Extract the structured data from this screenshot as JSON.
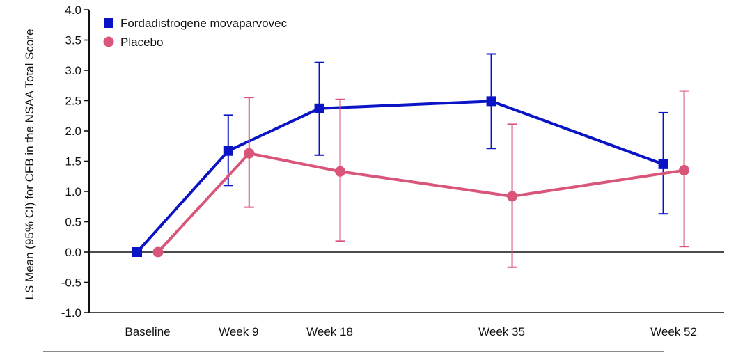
{
  "chart_data": {
    "type": "line",
    "categories": [
      "Baseline",
      "Week 9",
      "Week 18",
      "Week 35",
      "Week 52"
    ],
    "x_positions_weeks": [
      0,
      9,
      18,
      35,
      52
    ],
    "ylabel": "LS Mean (95% CI) for CFB in the NSAA Total Score",
    "xlabel": "",
    "ylim": [
      -1.0,
      4.0
    ],
    "yticks": [
      "4.0",
      "3.5",
      "3.0",
      "2.5",
      "2.0",
      "1.5",
      "1.0",
      "0.5",
      "0.0",
      "-0.5",
      "-1.0"
    ],
    "legend_position": "top-left",
    "series": [
      {
        "name": "Fordadistrogene movaparvovec",
        "color": "#0a14c4",
        "marker": "square",
        "values": [
          0.0,
          1.67,
          2.37,
          2.49,
          1.45
        ],
        "ci_lower": [
          null,
          1.1,
          1.6,
          1.71,
          0.63
        ],
        "ci_upper": [
          null,
          2.26,
          3.13,
          3.27,
          2.3
        ]
      },
      {
        "name": "Placebo",
        "color": "#d9567a",
        "marker": "circle",
        "values": [
          0.0,
          1.63,
          1.33,
          0.92,
          1.35
        ],
        "ci_lower": [
          null,
          0.74,
          0.18,
          -0.25,
          0.09
        ],
        "ci_upper": [
          null,
          2.55,
          2.52,
          2.11,
          2.66
        ]
      }
    ]
  }
}
